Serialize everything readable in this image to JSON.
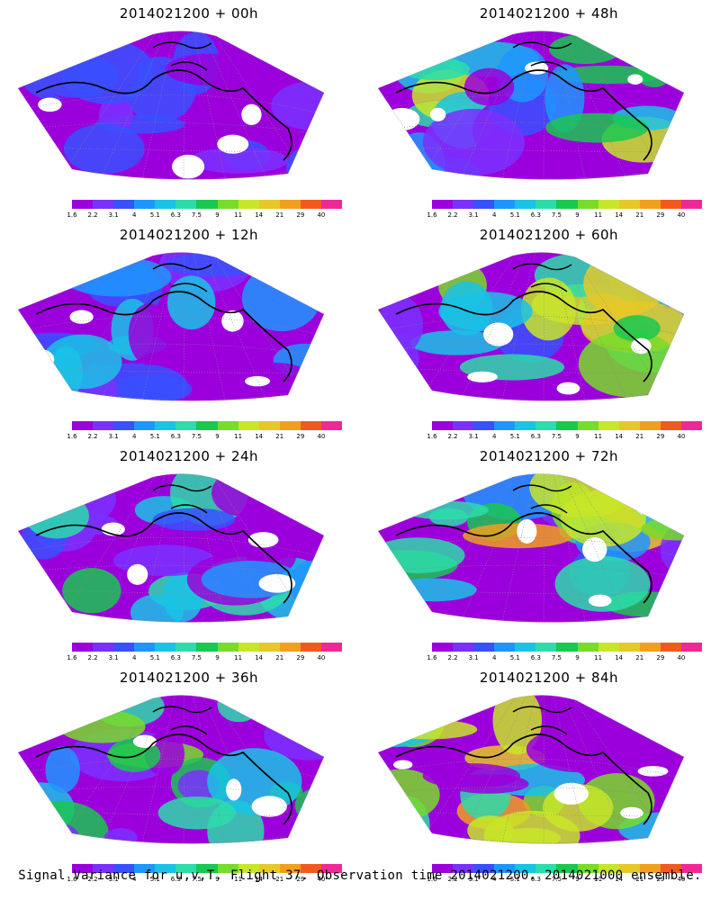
{
  "panels": [
    {
      "title": "2014021200  +  00h",
      "intensity": 0.15
    },
    {
      "title": "2014021200  +  12h",
      "intensity": 0.3
    },
    {
      "title": "2014021200  +  24h",
      "intensity": 0.4
    },
    {
      "title": "2014021200  +  36h",
      "intensity": 0.55
    },
    {
      "title": "2014021200  +  48h",
      "intensity": 0.6
    },
    {
      "title": "2014021200  +  60h",
      "intensity": 0.68
    },
    {
      "title": "2014021200  +  72h",
      "intensity": 0.78
    },
    {
      "title": "2014021200  +  84h",
      "intensity": 0.85
    }
  ],
  "colorbar": {
    "labels": [
      "1.6",
      "2.2",
      "3.1",
      "4",
      "5.1",
      "6.3",
      "7.5",
      "9",
      "11",
      "14",
      "21",
      "29",
      "40"
    ],
    "colors": [
      "#9b00dc",
      "#7a30ff",
      "#3850ff",
      "#1e96ff",
      "#19c3e6",
      "#2ddcaa",
      "#19c850",
      "#78dc28",
      "#c8e628",
      "#e6c828",
      "#f0a01e",
      "#f05a1e",
      "#f02896"
    ]
  },
  "footer": "Signal Variance for u,v,T. Flight 37. Observation time 2014021200. 2014021000 ensemble."
}
